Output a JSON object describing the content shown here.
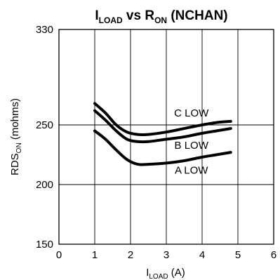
{
  "chart_data": {
    "type": "line",
    "title": {
      "main": "I",
      "main_sub": "LOAD",
      "mid": " vs R",
      "mid_sub": "ON",
      "tail": " (NCHAN)"
    },
    "xlabel": {
      "main": "I",
      "sub": "LOAD",
      "tail": " (A)"
    },
    "ylabel": {
      "main": "RDS",
      "sub": "ON",
      "tail": " (mohms)"
    },
    "xlim": [
      0,
      6
    ],
    "ylim": [
      150,
      330
    ],
    "x_ticks": [
      0,
      1,
      2,
      3,
      4,
      5,
      6
    ],
    "x_tick_labels": [
      "0",
      "1",
      "2",
      "3",
      "4",
      "5",
      "6"
    ],
    "y_ticks": [
      150,
      200,
      250,
      330
    ],
    "y_tick_labels": [
      "150",
      "200",
      "250",
      "330"
    ],
    "grid": true,
    "series": [
      {
        "name": "C LOW",
        "x": [
          1.0,
          1.3,
          1.6,
          1.9,
          2.2,
          2.5,
          3.0,
          3.5,
          4.0,
          4.4,
          4.8
        ],
        "y": [
          268,
          260,
          250,
          244,
          242,
          242,
          244,
          247,
          250,
          252,
          253
        ]
      },
      {
        "name": "B LOW",
        "x": [
          1.0,
          1.3,
          1.6,
          1.9,
          2.2,
          2.5,
          3.0,
          3.5,
          4.0,
          4.4,
          4.8
        ],
        "y": [
          262,
          254,
          245,
          238,
          236,
          236,
          238,
          240,
          243,
          245,
          247
        ]
      },
      {
        "name": "A LOW",
        "x": [
          1.0,
          1.3,
          1.6,
          1.9,
          2.2,
          2.5,
          3.0,
          3.5,
          4.0,
          4.4,
          4.8
        ],
        "y": [
          245,
          238,
          229,
          221,
          217,
          217,
          218,
          220,
          223,
          225,
          227
        ]
      }
    ],
    "annotations": [
      {
        "text": "C LOW",
        "x": 3.7,
        "y": 257
      },
      {
        "text": "B LOW",
        "x": 3.7,
        "y": 230
      },
      {
        "text": "A LOW",
        "x": 3.7,
        "y": 209
      }
    ]
  }
}
